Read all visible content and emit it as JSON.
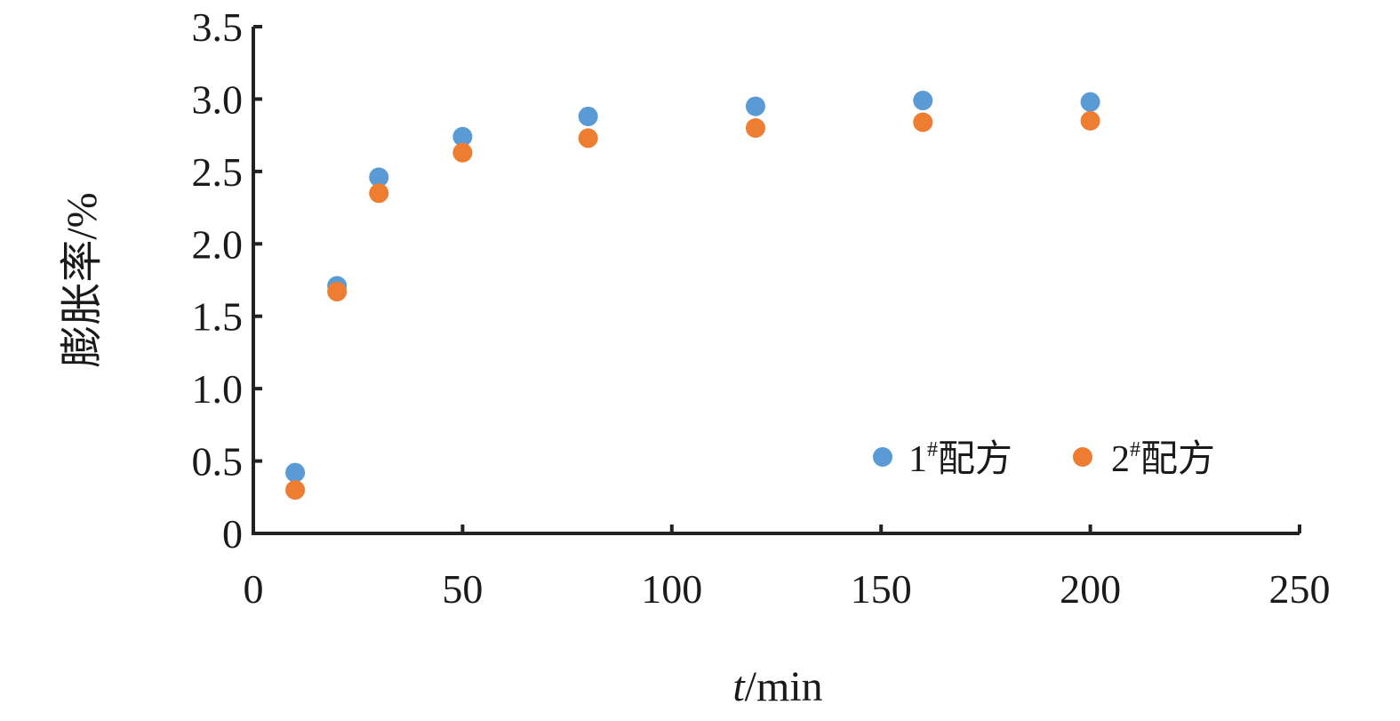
{
  "chart_data": {
    "type": "scatter",
    "title": "",
    "xlabel_italic": "t",
    "xlabel_rest": "/min",
    "ylabel": "膨胀率/%",
    "xlim": [
      0,
      250
    ],
    "ylim": [
      0,
      3.5
    ],
    "x_ticks": [
      0,
      50,
      100,
      150,
      200,
      250
    ],
    "y_ticks": [
      0,
      0.5,
      1.0,
      1.5,
      2.0,
      2.5,
      3.0,
      3.5
    ],
    "x_tick_labels": [
      "0",
      "50",
      "100",
      "150",
      "200",
      "250"
    ],
    "y_tick_labels": [
      "0",
      "0.5",
      "1.0",
      "1.5",
      "2.0",
      "2.5",
      "3.0",
      "3.5"
    ],
    "grid": false,
    "legend_position": "bottom-right",
    "series": [
      {
        "name": "1#配方",
        "name_number": "1",
        "name_sup": "#",
        "name_text": "配方",
        "color": "#5b9bd5",
        "x": [
          10,
          20,
          30,
          50,
          80,
          120,
          160,
          200
        ],
        "y": [
          0.42,
          1.71,
          2.46,
          2.74,
          2.88,
          2.95,
          2.99,
          2.98
        ]
      },
      {
        "name": "2#配方",
        "name_number": "2",
        "name_sup": "#",
        "name_text": "配方",
        "color": "#ed7d31",
        "x": [
          10,
          20,
          30,
          50,
          80,
          120,
          160,
          200
        ],
        "y": [
          0.3,
          1.67,
          2.35,
          2.63,
          2.73,
          2.8,
          2.84,
          2.85
        ]
      }
    ]
  }
}
